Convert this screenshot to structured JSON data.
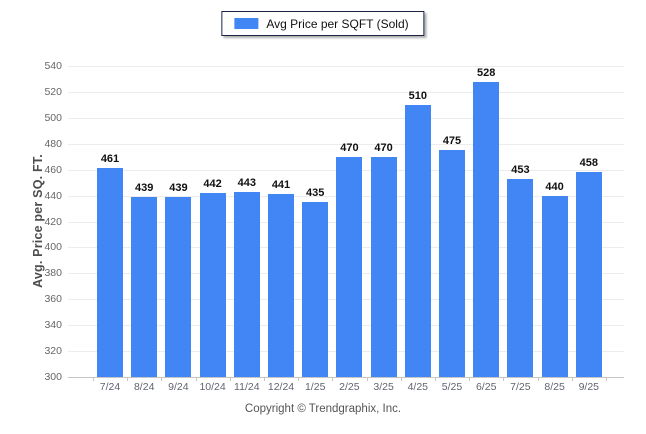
{
  "legend": {
    "label": "Avg Price per SQFT (Sold)"
  },
  "footer": "Copyright © Trendgraphix, Inc.",
  "colors": {
    "bar": "#4285f4",
    "legend_border": "#1b2447",
    "grid": "#ececec",
    "axis_line": "#c6c6c6",
    "tick_label": "#666666",
    "value_label": "#111111"
  },
  "chart_data": {
    "type": "bar",
    "title": "",
    "categories": [
      "7/24",
      "8/24",
      "9/24",
      "10/24",
      "11/24",
      "12/24",
      "1/25",
      "2/25",
      "3/25",
      "4/25",
      "5/25",
      "6/25",
      "7/25",
      "8/25",
      "9/25"
    ],
    "series": [
      {
        "name": "Avg Price per SQFT (Sold)",
        "values": [
          461,
          439,
          439,
          442,
          443,
          441,
          435,
          470,
          470,
          510,
          475,
          528,
          453,
          440,
          458
        ]
      }
    ],
    "xlabel": "",
    "ylabel": "Avg. Price per SQ. FT.",
    "ylim": [
      300,
      540
    ],
    "ytick_step": 20,
    "grid": true,
    "legend_position": "top",
    "value_labels": true
  }
}
